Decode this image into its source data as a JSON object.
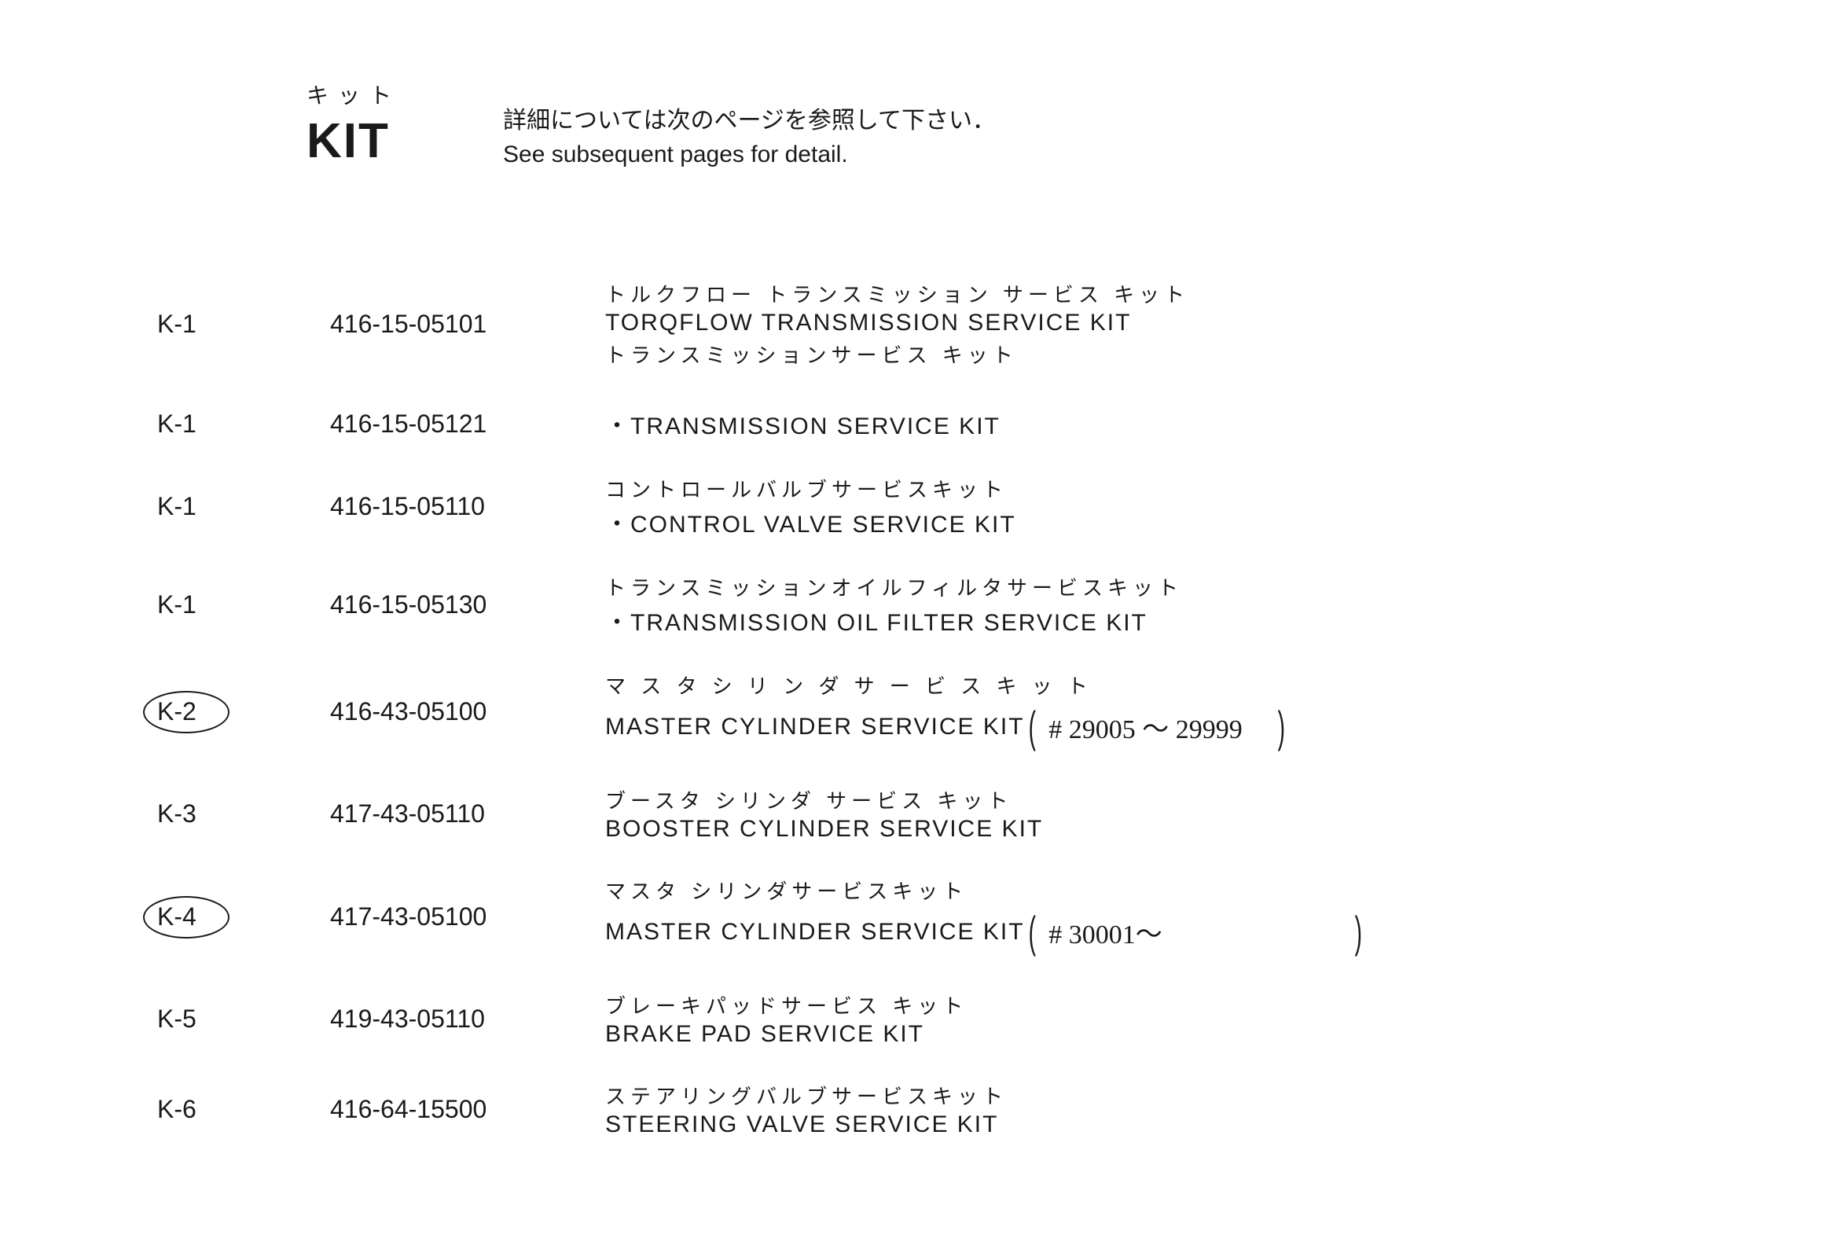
{
  "header": {
    "kit_jp": "キット",
    "kit_en": "KIT",
    "note_jp": "詳細については次のページを参照して下さい．",
    "note_en": "See subsequent pages for detail."
  },
  "rows": [
    {
      "code": "K-1",
      "part": "416-15-05101",
      "desc_jp": "トルクフロー トランスミッション サービス キット",
      "desc_en": "TORQFLOW TRANSMISSION SERVICE KIT",
      "desc_jp2": "トランスミッションサービス キット",
      "circled": false,
      "handwritten": ""
    },
    {
      "code": "K-1",
      "part": "416-15-05121",
      "desc_jp": "",
      "desc_en": "・TRANSMISSION SERVICE KIT",
      "desc_jp2": "",
      "circled": false,
      "handwritten": ""
    },
    {
      "code": "K-1",
      "part": "416-15-05110",
      "desc_jp": "コントロールバルブサービスキット",
      "desc_en": "・CONTROL VALVE SERVICE KIT",
      "desc_jp2": "",
      "circled": false,
      "handwritten": ""
    },
    {
      "code": "K-1",
      "part": "416-15-05130",
      "desc_jp": "トランスミッションオイルフィルタサービスキット",
      "desc_en": "・TRANSMISSION OIL FILTER SERVICE KIT",
      "desc_jp2": "",
      "circled": false,
      "handwritten": ""
    },
    {
      "code": "K-2",
      "part": "416-43-05100",
      "desc_jp": "マ ス タ シ リ ン ダ サ ー ビ ス キ ッ ト",
      "desc_en": "MASTER CYLINDER SERVICE KIT",
      "desc_jp2": "",
      "circled": true,
      "handwritten": "# 29005 〜 29999",
      "hw_paren_right_class": "tight"
    },
    {
      "code": "K-3",
      "part": "417-43-05110",
      "desc_jp": "ブースタ シリンダ サービス キット",
      "desc_en": "BOOSTER CYLINDER SERVICE KIT",
      "desc_jp2": "",
      "circled": false,
      "handwritten": ""
    },
    {
      "code": "K-4",
      "part": "417-43-05100",
      "desc_jp": "マスタ シリンダサービスキット",
      "desc_en": "MASTER CYLINDER SERVICE KIT",
      "desc_jp2": "",
      "circled": true,
      "handwritten": "# 30001〜",
      "hw_paren_right_class": ""
    },
    {
      "code": "K-5",
      "part": "419-43-05110",
      "desc_jp": "ブレーキパッドサービス キット",
      "desc_en": "BRAKE PAD SERVICE KIT",
      "desc_jp2": "",
      "circled": false,
      "handwritten": ""
    },
    {
      "code": "K-6",
      "part": "416-64-15500",
      "desc_jp": "ステアリングバルブサービスキット",
      "desc_en": "STEERING VALVE SERVICE KIT",
      "desc_jp2": "",
      "circled": false,
      "handwritten": ""
    }
  ]
}
